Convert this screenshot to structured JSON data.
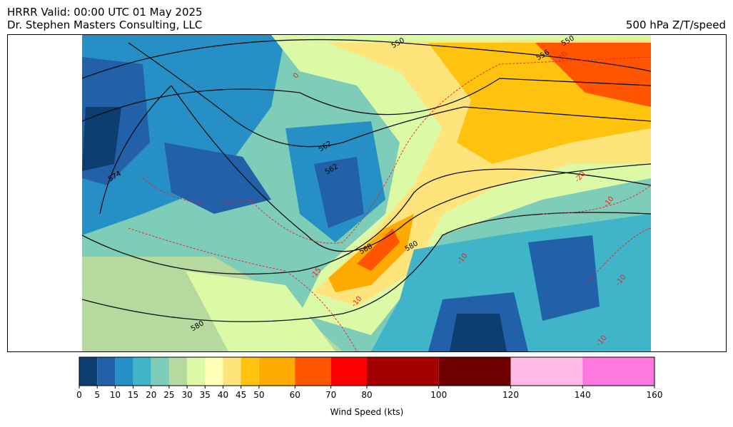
{
  "header": {
    "title": "HRRR Valid: 00:00 UTC 01 May 2025",
    "subtitle": "Dr. Stephen Masters Consulting, LLC",
    "product": "500 hPa Z/T/speed"
  },
  "map": {
    "height_contour_labels": [
      550,
      550,
      556,
      562,
      562,
      568,
      574,
      580,
      580
    ],
    "temperature_contour_labels": [
      -20,
      -20,
      -15,
      -10,
      -10,
      -10,
      -10,
      -10,
      0
    ]
  },
  "chart_data": {
    "type": "colorbar",
    "xlabel": "Wind Speed (kts)",
    "xlim": [
      0,
      160
    ],
    "bounds": [
      0,
      5,
      10,
      15,
      20,
      25,
      30,
      35,
      40,
      45,
      50,
      60,
      70,
      80,
      100,
      120,
      140,
      160
    ],
    "colors": [
      "#0e3e6f",
      "#2260a9",
      "#2690c6",
      "#40b4c8",
      "#7dcdb9",
      "#b5d99e",
      "#dcf9a6",
      "#ffffb5",
      "#ffe47c",
      "#ffc30f",
      "#ffaa00",
      "#ff5500",
      "#ff0000",
      "#a50000",
      "#700000",
      "#ffbbe6",
      "#ff78e0"
    ],
    "xticks": [
      0,
      5,
      10,
      15,
      20,
      25,
      30,
      35,
      40,
      45,
      50,
      60,
      70,
      80,
      100,
      120,
      140,
      160
    ]
  }
}
